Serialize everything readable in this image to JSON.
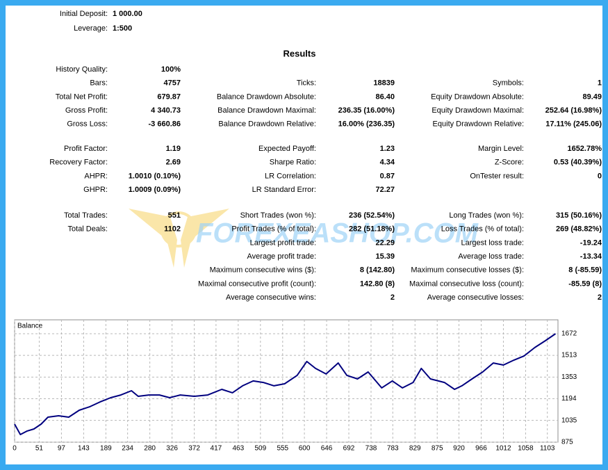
{
  "header": {
    "rows": [
      {
        "label": "Initial Deposit:",
        "value": "1 000.00"
      },
      {
        "label": "Leverage:",
        "value": "1:500"
      }
    ]
  },
  "results": {
    "title": "Results",
    "groups": [
      [
        {
          "left": {
            "label": "History Quality:",
            "value": "100%"
          }
        },
        {
          "left": {
            "label": "Bars:",
            "value": "4757"
          },
          "middle": {
            "label": "Ticks:",
            "value": "18839"
          },
          "right": {
            "label": "Symbols:",
            "value": "1"
          }
        },
        {
          "left": {
            "label": "Total Net Profit:",
            "value": "679.87"
          },
          "middle": {
            "label": "Balance Drawdown Absolute:",
            "value": "86.40"
          },
          "right": {
            "label": "Equity Drawdown Absolute:",
            "value": "89.49"
          }
        },
        {
          "left": {
            "label": "Gross Profit:",
            "value": "4 340.73"
          },
          "middle": {
            "label": "Balance Drawdown Maximal:",
            "value": "236.35 (16.00%)"
          },
          "right": {
            "label": "Equity Drawdown Maximal:",
            "value": "252.64 (16.98%)"
          }
        },
        {
          "left": {
            "label": "Gross Loss:",
            "value": "-3 660.86"
          },
          "middle": {
            "label": "Balance Drawdown Relative:",
            "value": "16.00% (236.35)"
          },
          "right": {
            "label": "Equity Drawdown Relative:",
            "value": "17.11% (245.06)"
          }
        }
      ],
      [
        {
          "left": {
            "label": "Profit Factor:",
            "value": "1.19"
          },
          "middle": {
            "label": "Expected Payoff:",
            "value": "1.23"
          },
          "right": {
            "label": "Margin Level:",
            "value": "1652.78%"
          }
        },
        {
          "left": {
            "label": "Recovery Factor:",
            "value": "2.69"
          },
          "middle": {
            "label": "Sharpe Ratio:",
            "value": "4.34"
          },
          "right": {
            "label": "Z-Score:",
            "value": "0.53 (40.39%)"
          }
        },
        {
          "left": {
            "label": "AHPR:",
            "value": "1.0010 (0.10%)"
          },
          "middle": {
            "label": "LR Correlation:",
            "value": "0.87"
          },
          "right": {
            "label": "OnTester result:",
            "value": "0"
          }
        },
        {
          "left": {
            "label": "GHPR:",
            "value": "1.0009 (0.09%)"
          },
          "middle": {
            "label": "LR Standard Error:",
            "value": "72.27"
          }
        }
      ],
      [
        {
          "left": {
            "label": "Total Trades:",
            "value": "551"
          },
          "middle": {
            "label": "Short Trades (won %):",
            "value": "236 (52.54%)"
          },
          "right": {
            "label": "Long Trades (won %):",
            "value": "315 (50.16%)"
          }
        },
        {
          "left": {
            "label": "Total Deals:",
            "value": "1102"
          },
          "middle": {
            "label": "Profit Trades (% of total):",
            "value": "282 (51.18%)"
          },
          "right": {
            "label": "Loss Trades (% of total):",
            "value": "269 (48.82%)"
          }
        },
        {
          "middle": {
            "label": "Largest profit trade:",
            "value": "22.29"
          },
          "right": {
            "label": "Largest loss trade:",
            "value": "-19.24"
          }
        },
        {
          "middle": {
            "label": "Average profit trade:",
            "value": "15.39"
          },
          "right": {
            "label": "Average loss trade:",
            "value": "-13.34"
          }
        },
        {
          "middle": {
            "label": "Maximum consecutive wins ($):",
            "value": "8 (142.80)"
          },
          "right": {
            "label": "Maximum consecutive losses ($):",
            "value": "8 (-85.59)"
          }
        },
        {
          "middle": {
            "label": "Maximal consecutive profit (count):",
            "value": "142.80 (8)"
          },
          "right": {
            "label": "Maximal consecutive loss (count):",
            "value": "-85.59 (8)"
          }
        },
        {
          "middle": {
            "label": "Average consecutive wins:",
            "value": "2"
          },
          "right": {
            "label": "Average consecutive losses:",
            "value": "2"
          }
        }
      ]
    ]
  },
  "watermark": "FOREXEASHOP.COM",
  "chart_data": {
    "type": "line",
    "x": [
      0,
      12,
      26,
      40,
      55,
      69,
      91,
      112,
      134,
      156,
      177,
      199,
      220,
      242,
      256,
      278,
      300,
      321,
      343,
      372,
      400,
      429,
      451,
      472,
      494,
      515,
      537,
      559,
      585,
      605,
      623,
      645,
      670,
      688,
      710,
      732,
      760,
      782,
      803,
      825,
      842,
      861,
      890,
      911,
      926,
      947,
      969,
      991,
      1012,
      1034,
      1055,
      1077,
      1099,
      1120
    ],
    "series": [
      {
        "name": "Balance",
        "color": "#00007f",
        "values": [
          1008,
          931,
          957,
          972,
          1008,
          1059,
          1069,
          1059,
          1110,
          1136,
          1171,
          1202,
          1222,
          1253,
          1212,
          1222,
          1222,
          1202,
          1222,
          1212,
          1222,
          1263,
          1238,
          1289,
          1325,
          1314,
          1289,
          1304,
          1366,
          1468,
          1417,
          1376,
          1457,
          1366,
          1340,
          1391,
          1274,
          1325,
          1274,
          1314,
          1417,
          1340,
          1314,
          1263,
          1289,
          1340,
          1391,
          1457,
          1442,
          1478,
          1509,
          1570,
          1621,
          1672
        ]
      }
    ],
    "xlim": [
      0,
      1125
    ],
    "xticks": [
      0,
      51,
      97,
      143,
      189,
      234,
      280,
      326,
      372,
      417,
      463,
      509,
      555,
      600,
      646,
      692,
      738,
      783,
      829,
      875,
      920,
      966,
      1012,
      1058,
      1103
    ],
    "ylim": [
      875,
      1774
    ],
    "yticks": [
      875,
      1035,
      1194,
      1353,
      1513,
      1672
    ],
    "grid": true
  }
}
